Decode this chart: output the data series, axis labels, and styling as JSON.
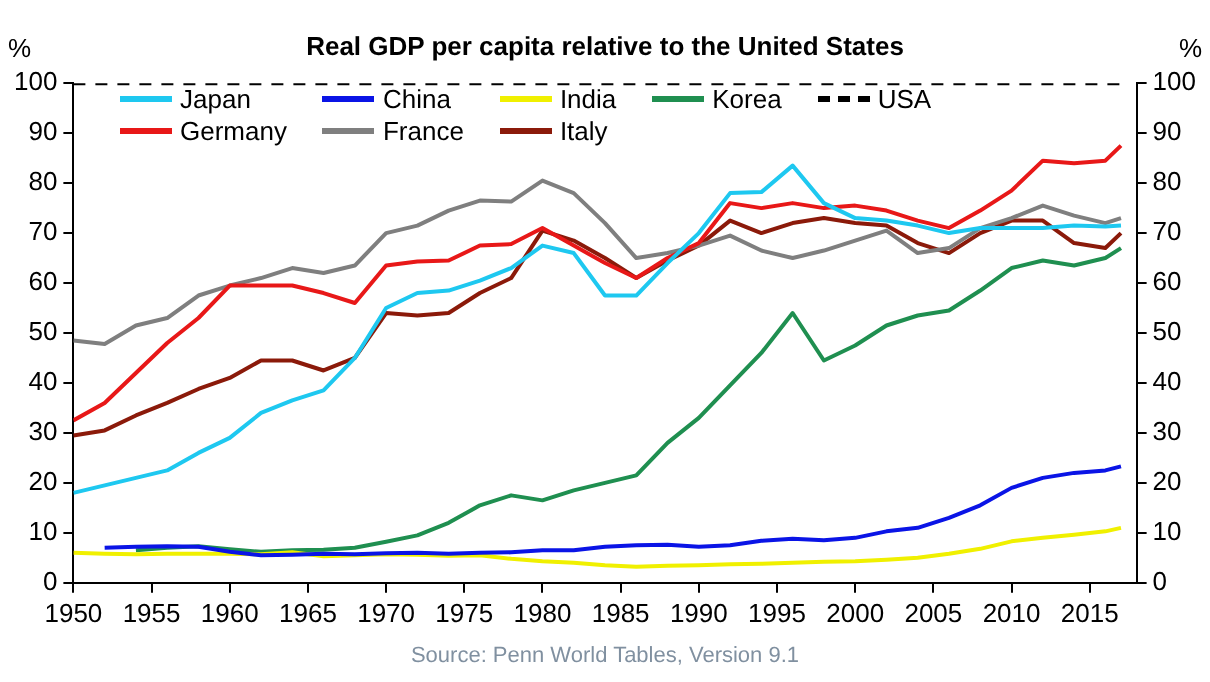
{
  "chart_data": {
    "type": "line",
    "title": "Real GDP per capita relative to the United States",
    "ylabel": "%",
    "y2label": "%",
    "x": [
      1950,
      1952,
      1954,
      1956,
      1958,
      1960,
      1962,
      1964,
      1966,
      1968,
      1970,
      1972,
      1974,
      1976,
      1978,
      1980,
      1982,
      1984,
      1986,
      1988,
      1990,
      1992,
      1994,
      1996,
      1998,
      2000,
      2002,
      2004,
      2006,
      2008,
      2010,
      2012,
      2014,
      2016,
      2017
    ],
    "series": [
      {
        "name": "Japan",
        "color": "#1ec8f0",
        "values": [
          18,
          19.5,
          21,
          22.5,
          26,
          29,
          34,
          36.5,
          38.5,
          45,
          55,
          58,
          58.5,
          60.5,
          63,
          67.5,
          66,
          57.5,
          57.5,
          64,
          70,
          78,
          78.2,
          83.5,
          76,
          73,
          72.5,
          71.5,
          70,
          71,
          71,
          71,
          71.5,
          71.3,
          71.5
        ]
      },
      {
        "name": "China",
        "color": "#0a14e6",
        "values": [
          null,
          7,
          7.2,
          7.3,
          7.2,
          6.2,
          5.5,
          5.6,
          5.8,
          5.7,
          5.9,
          6,
          5.8,
          6,
          6.1,
          6.5,
          6.5,
          7.2,
          7.5,
          7.6,
          7.2,
          7.5,
          8.4,
          8.8,
          8.5,
          9,
          10.3,
          11,
          13,
          15.5,
          19,
          21,
          22,
          22.5,
          23.3
        ]
      },
      {
        "name": "India",
        "color": "#f0f000",
        "values": [
          6,
          5.8,
          5.7,
          5.8,
          5.8,
          5.8,
          5.7,
          6.1,
          5.3,
          5.5,
          5.7,
          5.6,
          5.4,
          5.5,
          4.8,
          4.3,
          4,
          3.5,
          3.2,
          3.4,
          3.5,
          3.7,
          3.8,
          4,
          4.2,
          4.3,
          4.6,
          5,
          5.8,
          6.8,
          8.3,
          9,
          9.6,
          10.3,
          11
        ]
      },
      {
        "name": "Korea",
        "color": "#1f8f50",
        "values": [
          null,
          null,
          6.5,
          7,
          7.3,
          6.7,
          6.2,
          6.5,
          6.6,
          7,
          8.2,
          9.5,
          12,
          15.5,
          17.5,
          16.5,
          18.5,
          20,
          21.5,
          28,
          33,
          39.5,
          46,
          54,
          44.5,
          47.5,
          51.5,
          53.5,
          54.5,
          58.5,
          63,
          64.5,
          63.5,
          65,
          67
        ]
      },
      {
        "name": "USA",
        "color": "#000000",
        "line_style": "dashed",
        "values": [
          100,
          100,
          100,
          100,
          100,
          100,
          100,
          100,
          100,
          100,
          100,
          100,
          100,
          100,
          100,
          100,
          100,
          100,
          100,
          100,
          100,
          100,
          100,
          100,
          100,
          100,
          100,
          100,
          100,
          100,
          100,
          100,
          100,
          100,
          100
        ]
      },
      {
        "name": "Germany",
        "color": "#e81818",
        "values": [
          32.5,
          36,
          42,
          48,
          53,
          59.5,
          59.5,
          59.5,
          58,
          56,
          63.5,
          64.3,
          64.5,
          67.5,
          67.8,
          71,
          67.5,
          64,
          61,
          65,
          68,
          76,
          75,
          76,
          75,
          75.5,
          74.5,
          72.5,
          71,
          74.5,
          78.5,
          84.5,
          84,
          84.5,
          87.5
        ]
      },
      {
        "name": "France",
        "color": "#7f7f7f",
        "values": [
          48.5,
          47.8,
          51.5,
          53,
          57.5,
          59.5,
          61,
          63,
          62,
          63.5,
          70,
          71.5,
          74.5,
          76.5,
          76.3,
          80.5,
          78,
          72,
          65,
          66,
          67.5,
          69.5,
          66.5,
          65,
          66.5,
          68.5,
          70.5,
          66,
          67,
          71,
          73,
          75.5,
          73.5,
          72,
          73
        ]
      },
      {
        "name": "Italy",
        "color": "#8b1a0a",
        "values": [
          29.5,
          30.5,
          33.5,
          36,
          38.8,
          41,
          44.5,
          44.5,
          42.5,
          45,
          54,
          53.5,
          54,
          58,
          61,
          70.5,
          68.5,
          65,
          61,
          64.5,
          67.5,
          72.5,
          70,
          72,
          73,
          72,
          71.5,
          68,
          66,
          70,
          72.5,
          72.5,
          68,
          67,
          70
        ]
      }
    ],
    "xlim": [
      1950,
      2018
    ],
    "xticks": [
      1950,
      1955,
      1960,
      1965,
      1970,
      1975,
      1980,
      1985,
      1990,
      1995,
      2000,
      2005,
      2010,
      2015
    ],
    "ylim": [
      0,
      100
    ],
    "yticks": [
      0,
      10,
      20,
      30,
      40,
      50,
      60,
      70,
      80,
      90,
      100
    ],
    "y2lim": [
      0,
      100
    ],
    "y2ticks": [
      0,
      10,
      20,
      30,
      40,
      50,
      60,
      70,
      80,
      90,
      100
    ],
    "grid": false,
    "legend": "top",
    "line_style": "solid",
    "marker": "none",
    "annotations": [
      "Source: Penn World Tables, Version 9.1"
    ]
  }
}
